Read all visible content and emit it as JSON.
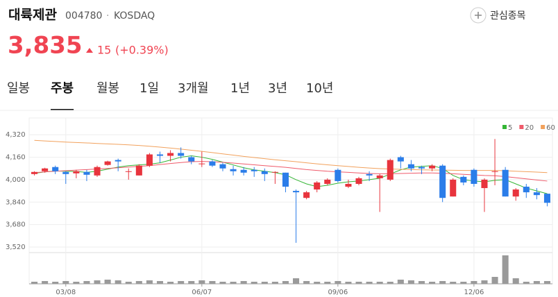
{
  "header": {
    "name": "대륙제관",
    "code": "004780",
    "separator": "·",
    "market": "KOSDAQ",
    "watch_button": "관심종목",
    "price": "3,835",
    "change": "15",
    "change_rate": "(+0.39%)"
  },
  "tabs": [
    {
      "label": "일봉",
      "active": false
    },
    {
      "label": "주봉",
      "active": true
    },
    {
      "label": "월봉",
      "active": false
    },
    {
      "label": "1일",
      "active": false
    },
    {
      "label": "3개월",
      "active": false
    },
    {
      "label": "1년",
      "active": false
    },
    {
      "label": "3년",
      "active": false
    },
    {
      "label": "10년",
      "active": false
    }
  ],
  "chart_data": {
    "type": "candlestick",
    "categories": [
      null,
      null,
      null,
      "03/08",
      null,
      null,
      null,
      null,
      null,
      null,
      null,
      null,
      null,
      null,
      null,
      null,
      "06/07",
      null,
      null,
      null,
      null,
      null,
      null,
      null,
      null,
      null,
      null,
      null,
      null,
      "09/06",
      null,
      null,
      null,
      null,
      null,
      null,
      null,
      null,
      null,
      null,
      null,
      null,
      "12/06",
      null,
      null,
      null,
      null,
      null,
      null,
      null
    ],
    "open": [
      4040,
      4060,
      4090,
      4055,
      4045,
      4055,
      4030,
      4105,
      4140,
      4055,
      4030,
      4100,
      4180,
      4170,
      4190,
      4160,
      4110,
      4130,
      4110,
      4075,
      4070,
      4070,
      4060,
      4050,
      4050,
      3920,
      3870,
      3930,
      3970,
      4070,
      3950,
      3970,
      4040,
      4010,
      4000,
      4160,
      4110,
      4090,
      4080,
      4100,
      3880,
      4020,
      4070,
      3940,
      4055,
      4070,
      3880,
      3950,
      3910,
      3900
    ],
    "high": [
      4060,
      4085,
      4100,
      4060,
      4070,
      4070,
      4100,
      4135,
      4150,
      4080,
      4110,
      4190,
      4200,
      4210,
      4230,
      4170,
      4200,
      4140,
      4120,
      4100,
      4090,
      4090,
      4080,
      4060,
      4050,
      3930,
      3920,
      3990,
      4010,
      4080,
      4000,
      4020,
      4060,
      4040,
      4150,
      4170,
      4140,
      4100,
      4110,
      4110,
      4010,
      4030,
      4080,
      4010,
      4290,
      4090,
      3940,
      3970,
      3940,
      3900
    ],
    "low": [
      4030,
      4050,
      4040,
      3970,
      4010,
      3990,
      4020,
      4100,
      4060,
      4000,
      4030,
      4090,
      4120,
      4130,
      4150,
      4110,
      4090,
      4090,
      4060,
      4030,
      4030,
      4020,
      3990,
      3970,
      3910,
      3550,
      3860,
      3910,
      3960,
      3980,
      3940,
      3960,
      3990,
      3770,
      3990,
      4080,
      4060,
      4040,
      4060,
      3840,
      3880,
      3960,
      3950,
      3770,
      3960,
      3880,
      3850,
      3870,
      3860,
      3810
    ],
    "close": [
      4055,
      4080,
      4060,
      4040,
      4060,
      4035,
      4090,
      4130,
      4130,
      4060,
      4100,
      4180,
      4170,
      4190,
      4170,
      4130,
      4115,
      4100,
      4080,
      4060,
      4050,
      4060,
      4040,
      4055,
      3950,
      3910,
      3910,
      3980,
      4000,
      3990,
      3970,
      4010,
      4030,
      4030,
      4140,
      4130,
      4080,
      4080,
      4100,
      3870,
      4000,
      3980,
      3970,
      4000,
      4060,
      3880,
      3930,
      3910,
      3890,
      3835
    ],
    "up_color": "#e8343d",
    "down_color": "#2b7de9",
    "lines": [
      {
        "name": "5",
        "color": "#33b534",
        "values": [
          4045,
          4055,
          4062,
          4060,
          4058,
          4052,
          4060,
          4075,
          4090,
          4100,
          4105,
          4110,
          4120,
          4140,
          4160,
          4170,
          4160,
          4145,
          4125,
          4105,
          4085,
          4070,
          4060,
          4050,
          4035,
          4000,
          3970,
          3950,
          3960,
          3975,
          3985,
          3990,
          4000,
          4010,
          4040,
          4070,
          4090,
          4095,
          4100,
          4080,
          4030,
          4000,
          3990,
          3985,
          3995,
          4000,
          3970,
          3940,
          3920,
          3900
        ]
      },
      {
        "name": "20",
        "color": "#ef5a6a",
        "values": [
          4050,
          4055,
          4060,
          4064,
          4068,
          4072,
          4076,
          4080,
          4085,
          4090,
          4095,
          4100,
          4108,
          4115,
          4122,
          4128,
          4130,
          4128,
          4124,
          4118,
          4112,
          4106,
          4100,
          4094,
          4088,
          4080,
          4072,
          4066,
          4060,
          4056,
          4052,
          4048,
          4044,
          4042,
          4042,
          4044,
          4046,
          4048,
          4048,
          4046,
          4042,
          4038,
          4034,
          4030,
          4028,
          4022,
          4014,
          4006,
          3998,
          3990
        ]
      },
      {
        "name": "60",
        "color": "#f2a15c",
        "values": [
          4280,
          4276,
          4272,
          4268,
          4265,
          4262,
          4258,
          4255,
          4252,
          4248,
          4244,
          4238,
          4232,
          4225,
          4218,
          4210,
          4202,
          4193,
          4184,
          4175,
          4166,
          4158,
          4150,
          4142,
          4135,
          4128,
          4120,
          4113,
          4106,
          4100,
          4094,
          4088,
          4083,
          4079,
          4076,
          4074,
          4072,
          4070,
          4069,
          4068,
          4067,
          4066,
          4066,
          4066,
          4066,
          4064,
          4060,
          4057,
          4054,
          4050
        ]
      }
    ],
    "volume": {
      "color": "#9a9a9a",
      "values": [
        3,
        4,
        3,
        4,
        3,
        4,
        5,
        6,
        5,
        3,
        4,
        5,
        4,
        3,
        4,
        4,
        5,
        4,
        3,
        3,
        4,
        3,
        3,
        3,
        4,
        8,
        4,
        3,
        3,
        4,
        3,
        3,
        3,
        3,
        3,
        6,
        5,
        4,
        3,
        4,
        3,
        3,
        4,
        5,
        10,
        41,
        8,
        3,
        4,
        4
      ]
    },
    "ylim": [
      3500,
      4420
    ],
    "yticks": [
      {
        "value": 4320,
        "label": "4,320"
      },
      {
        "value": 4160,
        "label": "4,160"
      },
      {
        "value": 4000,
        "label": "4,000"
      },
      {
        "value": 3840,
        "label": "3,840"
      },
      {
        "value": 3680,
        "label": "3,680"
      },
      {
        "value": 3520,
        "label": "3,520"
      }
    ],
    "grid": true
  }
}
